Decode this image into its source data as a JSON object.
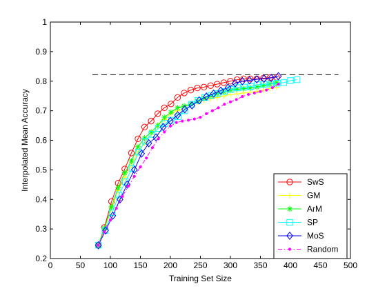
{
  "chart_data": {
    "type": "line",
    "xlabel": "Training Set Size",
    "ylabel": "Interpolated Mean Accuracy",
    "xlim": [
      0,
      500
    ],
    "ylim": [
      0.2,
      1.0
    ],
    "xticks": [
      0,
      50,
      100,
      150,
      200,
      250,
      300,
      350,
      400,
      450,
      500
    ],
    "yticks": [
      0.2,
      0.3,
      0.4,
      0.5,
      0.6,
      0.7,
      0.8,
      0.9,
      1.0
    ],
    "xtick_labels": [
      "0",
      "50",
      "100",
      "150",
      "200",
      "250",
      "300",
      "350",
      "400",
      "450",
      "500"
    ],
    "ytick_labels": [
      "0.2",
      "0.3",
      "0.4",
      "0.5",
      "0.6",
      "0.7",
      "0.8",
      "0.9",
      "1"
    ],
    "grid": false,
    "legend_position": "bottom-right",
    "reference_line": {
      "y": 0.822,
      "x_range": [
        70,
        480
      ],
      "style": "dashed",
      "color": "#000000"
    },
    "series": [
      {
        "name": "SwS",
        "color": "#ff0000",
        "marker": "circle",
        "dash": "solid",
        "x": [
          80,
          90,
          102,
          113,
          124,
          135,
          146,
          157,
          168,
          179,
          190,
          201,
          212,
          223,
          234,
          245,
          256,
          267,
          278,
          289,
          300,
          311,
          322,
          333,
          344,
          355,
          366,
          377
        ],
        "y": [
          0.245,
          0.305,
          0.393,
          0.455,
          0.503,
          0.557,
          0.605,
          0.645,
          0.665,
          0.69,
          0.71,
          0.723,
          0.745,
          0.76,
          0.77,
          0.777,
          0.78,
          0.785,
          0.79,
          0.795,
          0.8,
          0.805,
          0.808,
          0.808,
          0.808,
          0.81,
          0.812,
          0.813
        ]
      },
      {
        "name": "GM",
        "color": "#ffff00",
        "marker": "plus",
        "dash": "solid",
        "x": [
          80,
          90,
          102,
          113,
          124,
          135,
          146,
          157,
          168,
          179,
          190,
          201,
          212,
          223,
          234,
          245,
          256,
          267,
          278,
          289,
          300,
          311,
          322,
          333,
          344,
          355,
          366,
          377
        ],
        "y": [
          0.245,
          0.3,
          0.37,
          0.43,
          0.475,
          0.515,
          0.56,
          0.59,
          0.62,
          0.65,
          0.67,
          0.69,
          0.7,
          0.712,
          0.722,
          0.73,
          0.735,
          0.74,
          0.745,
          0.75,
          0.755,
          0.757,
          0.76,
          0.763,
          0.765,
          0.77,
          0.775,
          0.78
        ]
      },
      {
        "name": "ArM",
        "color": "#00ff00",
        "marker": "star",
        "dash": "solid",
        "x": [
          80,
          90,
          102,
          113,
          124,
          135,
          146,
          157,
          168,
          179,
          190,
          201,
          212,
          223,
          234,
          245,
          256,
          267,
          278,
          289,
          300,
          311,
          322,
          333,
          344,
          355,
          366,
          377
        ],
        "y": [
          0.245,
          0.302,
          0.375,
          0.44,
          0.49,
          0.53,
          0.578,
          0.608,
          0.628,
          0.65,
          0.678,
          0.695,
          0.71,
          0.716,
          0.722,
          0.732,
          0.742,
          0.75,
          0.758,
          0.764,
          0.77,
          0.773,
          0.775,
          0.777,
          0.78,
          0.785,
          0.79,
          0.795
        ]
      },
      {
        "name": "SP",
        "color": "#00ffff",
        "marker": "square",
        "dash": "solid",
        "x": [
          80,
          91,
          103,
          114,
          125,
          136,
          147,
          158,
          169,
          180,
          191,
          202,
          213,
          224,
          235,
          246,
          257,
          268,
          279,
          290,
          301,
          312,
          323,
          334,
          345,
          356,
          367,
          378,
          389,
          400,
          411
        ],
        "y": [
          0.245,
          0.295,
          0.355,
          0.415,
          0.46,
          0.505,
          0.56,
          0.597,
          0.62,
          0.64,
          0.657,
          0.668,
          0.68,
          0.7,
          0.722,
          0.735,
          0.745,
          0.752,
          0.758,
          0.765,
          0.772,
          0.778,
          0.78,
          0.782,
          0.788,
          0.79,
          0.79,
          0.793,
          0.795,
          0.802,
          0.805
        ]
      },
      {
        "name": "MoS",
        "color": "#0000ff",
        "marker": "diamond",
        "dash": "solid",
        "x": [
          80,
          92,
          104,
          116,
          128,
          140,
          152,
          164,
          176,
          188,
          200,
          212,
          224,
          236,
          248,
          260,
          272,
          284,
          296,
          308,
          320,
          332,
          344,
          356,
          368,
          380
        ],
        "y": [
          0.245,
          0.295,
          0.345,
          0.4,
          0.45,
          0.5,
          0.555,
          0.59,
          0.61,
          0.645,
          0.665,
          0.685,
          0.705,
          0.718,
          0.735,
          0.748,
          0.758,
          0.768,
          0.778,
          0.793,
          0.8,
          0.803,
          0.806,
          0.808,
          0.811,
          0.817
        ]
      },
      {
        "name": "Random",
        "color": "#ff00ff",
        "marker": "dot",
        "dash": "dashdot",
        "x": [
          80,
          90,
          100,
          110,
          120,
          130,
          140,
          150,
          160,
          170,
          180,
          190,
          200,
          210,
          220,
          230,
          240,
          250,
          260,
          270,
          280,
          290,
          300,
          310,
          320,
          330,
          340,
          350,
          360,
          370,
          380
        ],
        "y": [
          0.245,
          0.29,
          0.33,
          0.37,
          0.41,
          0.445,
          0.478,
          0.51,
          0.54,
          0.575,
          0.605,
          0.628,
          0.648,
          0.66,
          0.665,
          0.668,
          0.672,
          0.678,
          0.69,
          0.7,
          0.71,
          0.722,
          0.73,
          0.738,
          0.748,
          0.755,
          0.76,
          0.765,
          0.77,
          0.778,
          0.79
        ]
      }
    ]
  }
}
